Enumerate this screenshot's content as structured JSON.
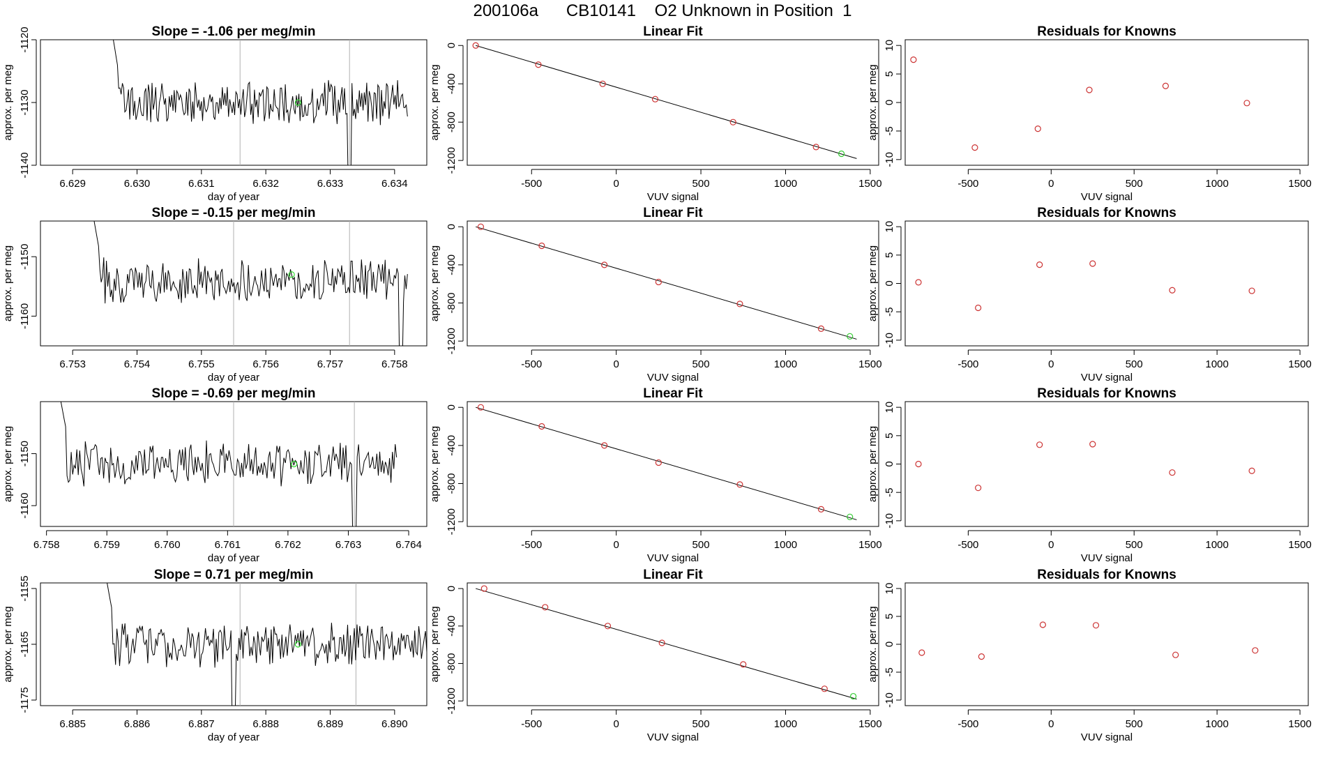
{
  "page": {
    "title": "200106a      CB10141    O2 Unknown in Position  1"
  },
  "colors": {
    "trace": "#000000",
    "marker_unknown": "#33dd33",
    "marker_known": "#cc3333",
    "marker_last_known": "#33cc33",
    "guide_line": "#b0b0b0",
    "fit_line": "#000000"
  },
  "chart_data": [
    {
      "type": "line",
      "row": 1,
      "panel": "trace",
      "title": "Slope =  -1.06  per meg/min",
      "xlabel": "day of year",
      "ylabel": "approx. per meg",
      "xlim": [
        6.6285,
        6.6345
      ],
      "ylim": [
        -1140,
        -1120
      ],
      "xticks": [
        "6.629",
        "6.630",
        "6.631",
        "6.632",
        "6.633",
        "6.634"
      ],
      "yticks": [
        "-1140",
        "-1130",
        "-1120"
      ],
      "trace_start": 6.6296,
      "trace_end": 6.6342,
      "baseline": -1130,
      "spike_down_at": 6.6333,
      "vlines": [
        6.6316,
        6.6333
      ],
      "unknown_point": {
        "x": 6.6325,
        "y": -1130
      }
    },
    {
      "type": "scatter",
      "row": 1,
      "panel": "fit",
      "title": "Linear Fit",
      "xlabel": "VUV signal",
      "ylabel": "approx. per meg",
      "xlim": [
        -880,
        1550
      ],
      "ylim": [
        -1250,
        60
      ],
      "xticks": [
        "-500",
        "0",
        "500",
        "1000",
        "1500"
      ],
      "yticks": [
        "-1200",
        "-800",
        "-400",
        "0"
      ],
      "x": [
        -830,
        -460,
        -80,
        230,
        690,
        1180
      ],
      "y": [
        0,
        -200,
        -400,
        -560,
        -800,
        -1060
      ],
      "unknown_point": {
        "x": 1330,
        "y": -1130
      },
      "fit_line": {
        "x": [
          -830,
          1420
        ],
        "y": [
          0,
          -1180
        ]
      }
    },
    {
      "type": "scatter",
      "row": 1,
      "panel": "residuals",
      "title": "Residuals for Knowns",
      "xlabel": "VUV signal",
      "ylabel": "approx. per meg",
      "xlim": [
        -880,
        1550
      ],
      "ylim": [
        -11,
        11
      ],
      "xticks": [
        "-500",
        "0",
        "500",
        "1000",
        "1500"
      ],
      "yticks": [
        "-10",
        "-5",
        "0",
        "5",
        "10"
      ],
      "x": [
        -830,
        -460,
        -80,
        230,
        690,
        1180
      ],
      "y": [
        7.5,
        -7.9,
        -4.6,
        2.2,
        2.9,
        -0.1
      ]
    },
    {
      "type": "line",
      "row": 2,
      "panel": "trace",
      "title": "Slope =  -0.15  per meg/min",
      "xlabel": "day of year",
      "ylabel": "approx. per meg",
      "xlim": [
        6.7525,
        6.7585
      ],
      "ylim": [
        -1165,
        -1144
      ],
      "xticks": [
        "6.753",
        "6.754",
        "6.755",
        "6.756",
        "6.757",
        "6.758"
      ],
      "yticks": [
        "-1160",
        "-1150"
      ],
      "trace_start": 6.7533,
      "trace_end": 6.7582,
      "baseline": -1154,
      "spike_down_at": 6.7581,
      "vlines": [
        6.7555,
        6.7573
      ],
      "unknown_point": {
        "x": 6.7564,
        "y": -1153
      }
    },
    {
      "type": "scatter",
      "row": 2,
      "panel": "fit",
      "title": "Linear Fit",
      "xlabel": "VUV signal",
      "ylabel": "approx. per meg",
      "xlim": [
        -880,
        1550
      ],
      "ylim": [
        -1250,
        60
      ],
      "xticks": [
        "-500",
        "0",
        "500",
        "1000",
        "1500"
      ],
      "yticks": [
        "-1200",
        "-800",
        "-400",
        "0"
      ],
      "x": [
        -800,
        -440,
        -70,
        250,
        730,
        1210
      ],
      "y": [
        0,
        -200,
        -400,
        -580,
        -810,
        -1070
      ],
      "unknown_point": {
        "x": 1380,
        "y": -1150
      },
      "fit_line": {
        "x": [
          -830,
          1420
        ],
        "y": [
          0,
          -1180
        ]
      }
    },
    {
      "type": "scatter",
      "row": 2,
      "panel": "residuals",
      "title": "Residuals for Knowns",
      "xlabel": "VUV signal",
      "ylabel": "approx. per meg",
      "xlim": [
        -880,
        1550
      ],
      "ylim": [
        -11,
        11
      ],
      "xticks": [
        "-500",
        "0",
        "500",
        "1000",
        "1500"
      ],
      "yticks": [
        "-10",
        "-5",
        "0",
        "5",
        "10"
      ],
      "x": [
        -800,
        -440,
        -70,
        250,
        730,
        1210
      ],
      "y": [
        0.2,
        -4.3,
        3.3,
        3.5,
        -1.2,
        -1.3
      ]
    },
    {
      "type": "line",
      "row": 3,
      "panel": "trace",
      "title": "Slope =  -0.69  per meg/min",
      "xlabel": "day of year",
      "ylabel": "approx. per meg",
      "xlim": [
        6.7579,
        6.7643
      ],
      "ylim": [
        -1164,
        -1140
      ],
      "xticks": [
        "6.758",
        "6.759",
        "6.760",
        "6.761",
        "6.762",
        "6.763",
        "6.764"
      ],
      "yticks": [
        "-1160",
        "-1150"
      ],
      "trace_start": 6.7582,
      "trace_end": 6.7638,
      "baseline": -1152,
      "spike_down_at": 6.7631,
      "vlines": [
        6.7611,
        6.7631
      ],
      "unknown_point": {
        "x": 6.7621,
        "y": -1152
      }
    },
    {
      "type": "scatter",
      "row": 3,
      "panel": "fit",
      "title": "Linear Fit",
      "xlabel": "VUV signal",
      "ylabel": "approx. per meg",
      "xlim": [
        -880,
        1550
      ],
      "ylim": [
        -1250,
        60
      ],
      "xticks": [
        "-500",
        "0",
        "500",
        "1000",
        "1500"
      ],
      "yticks": [
        "-1200",
        "-800",
        "-400",
        "0"
      ],
      "x": [
        -800,
        -440,
        -70,
        250,
        730,
        1210
      ],
      "y": [
        0,
        -200,
        -400,
        -580,
        -810,
        -1070
      ],
      "unknown_point": {
        "x": 1380,
        "y": -1150
      },
      "fit_line": {
        "x": [
          -830,
          1420
        ],
        "y": [
          0,
          -1180
        ]
      }
    },
    {
      "type": "scatter",
      "row": 3,
      "panel": "residuals",
      "title": "Residuals for Knowns",
      "xlabel": "VUV signal",
      "ylabel": "approx. per meg",
      "xlim": [
        -880,
        1550
      ],
      "ylim": [
        -11,
        11
      ],
      "xticks": [
        "-500",
        "0",
        "500",
        "1000",
        "1500"
      ],
      "yticks": [
        "-10",
        "-5",
        "0",
        "5",
        "10"
      ],
      "x": [
        -800,
        -440,
        -70,
        250,
        730,
        1210
      ],
      "y": [
        0.0,
        -4.2,
        3.4,
        3.5,
        -1.5,
        -1.2
      ]
    },
    {
      "type": "line",
      "row": 4,
      "panel": "trace",
      "title": "Slope =  0.71  per meg/min",
      "xlabel": "day of year",
      "ylabel": "approx. per meg",
      "xlim": [
        6.8845,
        6.8905
      ],
      "ylim": [
        -1176,
        -1154
      ],
      "xticks": [
        "6.885",
        "6.886",
        "6.887",
        "6.888",
        "6.889",
        "6.890"
      ],
      "yticks": [
        "-1175",
        "-1165",
        "-1155"
      ],
      "trace_start": 6.8855,
      "trace_end": 6.8905,
      "baseline": -1165,
      "spike_down_at": 6.8875,
      "vlines": [
        6.8876,
        6.8894
      ],
      "unknown_point": {
        "x": 6.8885,
        "y": -1165
      }
    },
    {
      "type": "scatter",
      "row": 4,
      "panel": "fit",
      "title": "Linear Fit",
      "xlabel": "VUV signal",
      "ylabel": "approx. per meg",
      "xlim": [
        -880,
        1550
      ],
      "ylim": [
        -1250,
        60
      ],
      "xticks": [
        "-500",
        "0",
        "500",
        "1000",
        "1500"
      ],
      "yticks": [
        "-1200",
        "-800",
        "-400",
        "0"
      ],
      "x": [
        -780,
        -420,
        -50,
        270,
        750,
        1230
      ],
      "y": [
        0,
        -200,
        -400,
        -580,
        -810,
        -1070
      ],
      "unknown_point": {
        "x": 1400,
        "y": -1150
      },
      "fit_line": {
        "x": [
          -830,
          1420
        ],
        "y": [
          0,
          -1180
        ]
      }
    },
    {
      "type": "scatter",
      "row": 4,
      "panel": "residuals",
      "title": "Residuals for Knowns",
      "xlabel": "VUV signal",
      "ylabel": "approx. per meg",
      "xlim": [
        -880,
        1550
      ],
      "ylim": [
        -11,
        11
      ],
      "xticks": [
        "-500",
        "0",
        "500",
        "1000",
        "1500"
      ],
      "yticks": [
        "-10",
        "-5",
        "0",
        "5",
        "10"
      ],
      "x": [
        -780,
        -420,
        -50,
        270,
        750,
        1230
      ],
      "y": [
        -1.5,
        -2.2,
        3.5,
        3.4,
        -1.9,
        -1.1
      ]
    }
  ]
}
